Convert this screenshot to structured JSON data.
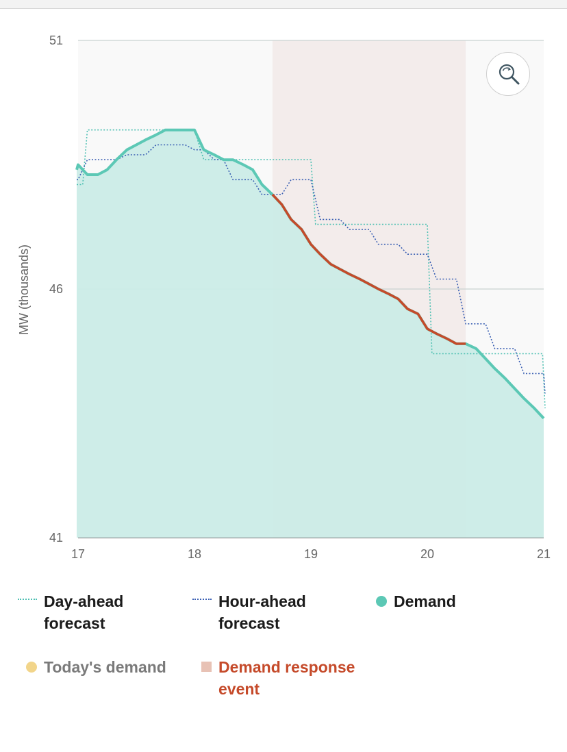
{
  "chart_data": {
    "type": "line",
    "ylabel": "MW (thousands)",
    "xlabel": "",
    "ylim": [
      41,
      51
    ],
    "xlim": [
      17,
      21
    ],
    "y_ticks": [
      "51",
      "46",
      "41"
    ],
    "y_tick_values": [
      51,
      46,
      41
    ],
    "x_ticks": [
      "17",
      "18",
      "19",
      "20",
      "21"
    ],
    "x_tick_values": [
      17,
      18,
      19,
      20,
      21
    ],
    "demand_response_event": {
      "start": 18.67,
      "end": 20.33
    },
    "series": [
      {
        "name": "Day-ahead forecast",
        "style": "dotted-step",
        "x": [
          16.92,
          17.04,
          17.08,
          18.0,
          18.08,
          19.0,
          19.04,
          20.0,
          20.04,
          20.99,
          21.02
        ],
        "values": [
          48.1,
          48.1,
          49.2,
          49.2,
          48.6,
          48.6,
          47.3,
          47.3,
          44.7,
          44.7,
          43.6
        ]
      },
      {
        "name": "Hour-ahead forecast",
        "style": "dotted-step",
        "x": [
          16.92,
          17.0,
          17.08,
          17.33,
          17.42,
          17.58,
          17.67,
          17.92,
          18.0,
          18.08,
          18.17,
          18.25,
          18.33,
          18.5,
          18.58,
          18.75,
          18.83,
          19.0,
          19.08,
          19.25,
          19.33,
          19.5,
          19.58,
          19.75,
          19.83,
          20.0,
          20.08,
          20.25,
          20.33,
          20.5,
          20.58,
          20.75,
          20.83,
          21.0,
          21.02
        ],
        "values": [
          48.2,
          48.2,
          48.6,
          48.6,
          48.7,
          48.7,
          48.9,
          48.9,
          48.8,
          48.8,
          48.6,
          48.6,
          48.2,
          48.2,
          47.9,
          47.9,
          48.2,
          48.2,
          47.4,
          47.4,
          47.2,
          47.2,
          46.9,
          46.9,
          46.7,
          46.7,
          46.2,
          46.2,
          45.3,
          45.3,
          44.8,
          44.8,
          44.3,
          44.3,
          43.9
        ]
      },
      {
        "name": "Demand",
        "color": "#5cc8b5",
        "x": [
          16.92,
          17.0,
          17.08,
          17.17,
          17.25,
          17.33,
          17.42,
          17.5,
          17.58,
          17.67,
          17.75,
          17.83,
          17.92,
          18.0,
          18.08,
          18.17,
          18.25,
          18.33,
          18.42,
          18.5,
          18.58,
          18.67,
          18.75,
          18.83,
          18.92,
          19.0,
          19.08,
          19.17,
          19.25,
          19.33,
          19.42,
          19.5,
          19.58,
          19.67,
          19.75,
          19.83,
          19.92,
          20.0,
          20.08,
          20.17,
          20.25,
          20.33,
          20.42,
          20.5,
          20.58,
          20.67,
          20.75,
          20.83,
          20.92,
          21.0
        ],
        "values": [
          48.4,
          48.5,
          48.3,
          48.3,
          48.4,
          48.6,
          48.8,
          48.9,
          49.0,
          49.1,
          49.2,
          49.2,
          49.2,
          49.2,
          48.8,
          48.7,
          48.6,
          48.6,
          48.5,
          48.4,
          48.1,
          47.9,
          47.7,
          47.4,
          47.2,
          46.9,
          46.7,
          46.5,
          46.4,
          46.3,
          46.2,
          46.1,
          46.0,
          45.9,
          45.8,
          45.6,
          45.5,
          45.2,
          45.1,
          45.0,
          44.9,
          44.9,
          44.8,
          44.6,
          44.4,
          44.2,
          44.0,
          43.8,
          43.6,
          43.4
        ]
      }
    ],
    "event_segment": {
      "from": 18.67,
      "to": 20.33
    }
  },
  "legend": {
    "day_ahead": "Day-ahead forecast",
    "hour_ahead": "Hour-ahead forecast",
    "demand": "Demand",
    "todays_demand": "Today's demand",
    "demand_response": "Demand response event"
  },
  "colors": {
    "demand": "#5cc8b5",
    "demand_fill": "#cbece7",
    "day_ahead": "#4fc0b3",
    "hour_ahead": "#3a5fb3",
    "event_line": "#c54a2a",
    "event_band": "#f3eceb",
    "todays_demand": "#f2d58a",
    "event_swatch": "#e8c2b5",
    "plot_bg": "#f9f9f9"
  },
  "zoom_icon": "zoom-search-icon"
}
